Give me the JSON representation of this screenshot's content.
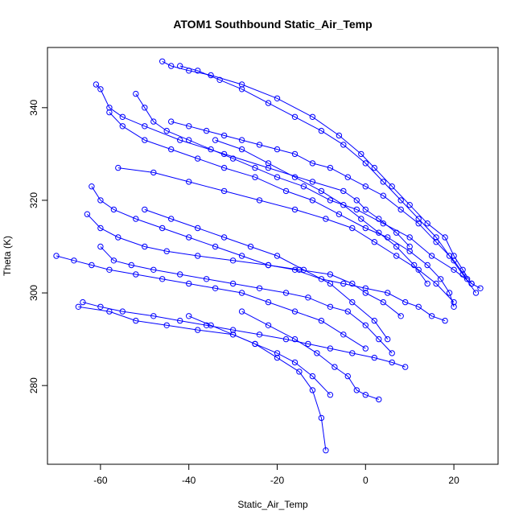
{
  "chart_data": {
    "type": "scatter",
    "title": "ATOM1 Southbound Static_Air_Temp",
    "xlabel": "Static_Air_Temp",
    "ylabel": "Theta (K)",
    "xlim": [
      -72,
      30
    ],
    "ylim": [
      263,
      353
    ],
    "x_ticks": [
      -60,
      -40,
      -20,
      0,
      20
    ],
    "y_ticks": [
      280,
      300,
      320,
      340
    ],
    "grid": false,
    "legend": "none",
    "color": "#0000ff",
    "marker": "open-circle",
    "connected": true,
    "series": [
      {
        "x": [
          -61,
          -60,
          -58,
          -55,
          -50,
          -42,
          -32,
          -22,
          -12,
          -5,
          -2,
          0,
          3,
          7,
          10
        ],
        "y": [
          345,
          344,
          340,
          338,
          336,
          333,
          330,
          327,
          324,
          322,
          320,
          318,
          316,
          313,
          310
        ]
      },
      {
        "x": [
          -46,
          -44,
          -40,
          -35,
          -28,
          -20,
          -12,
          -6,
          -1,
          2,
          6,
          10,
          14,
          18,
          20,
          22,
          24,
          26
        ],
        "y": [
          350,
          349,
          348,
          347,
          345,
          342,
          338,
          334,
          330,
          327,
          323,
          319,
          315,
          312,
          308,
          305,
          302,
          301
        ]
      },
      {
        "x": [
          -42,
          -38,
          -33,
          -28,
          -22,
          -16,
          -10,
          -5,
          0,
          4,
          8,
          12,
          16,
          19,
          22,
          25
        ],
        "y": [
          349,
          348,
          346,
          344,
          341,
          338,
          335,
          332,
          328,
          324,
          320,
          316,
          312,
          308,
          304,
          300
        ]
      },
      {
        "x": [
          -58,
          -55,
          -50,
          -44,
          -38,
          -32,
          -25,
          -18,
          -12,
          -6,
          0,
          5,
          10,
          14,
          17,
          19,
          20
        ],
        "y": [
          339,
          336,
          333,
          331,
          329,
          327,
          325,
          322,
          320,
          317,
          314,
          312,
          309,
          306,
          303,
          300,
          297
        ]
      },
      {
        "x": [
          -62,
          -60,
          -57,
          -52,
          -46,
          -40,
          -34,
          -28,
          -22,
          -16,
          -10,
          -5,
          0,
          5,
          9,
          12,
          15,
          18
        ],
        "y": [
          323,
          320,
          318,
          316,
          314,
          312,
          310,
          308,
          306,
          305,
          303,
          302,
          301,
          300,
          298,
          297,
          295,
          294
        ]
      },
      {
        "x": [
          -63,
          -60,
          -56,
          -50,
          -45,
          -38,
          -30,
          -22,
          -15,
          -8,
          -3,
          0,
          4,
          8
        ],
        "y": [
          317,
          314,
          312,
          310,
          309,
          308,
          307,
          306,
          305,
          304,
          302,
          300,
          298,
          295
        ]
      },
      {
        "x": [
          -60,
          -57,
          -53,
          -48,
          -42,
          -36,
          -30,
          -24,
          -18,
          -13,
          -8,
          -4,
          0,
          3,
          6
        ],
        "y": [
          310,
          307,
          306,
          305,
          304,
          303,
          302,
          301,
          300,
          299,
          297,
          296,
          293,
          290,
          287
        ]
      },
      {
        "x": [
          -70,
          -66,
          -62,
          -58,
          -52,
          -46,
          -40,
          -34,
          -28,
          -22,
          -16,
          -10,
          -5,
          0
        ],
        "y": [
          308,
          307,
          306,
          305,
          304,
          303,
          302,
          301,
          300,
          298,
          296,
          294,
          291,
          288
        ]
      },
      {
        "x": [
          -64,
          -60,
          -55,
          -48,
          -42,
          -36,
          -30,
          -24,
          -18,
          -13,
          -8,
          -3,
          2,
          6,
          9
        ],
        "y": [
          298,
          297,
          296,
          295,
          294,
          293,
          292,
          291,
          290,
          289,
          288,
          287,
          286,
          285,
          284
        ]
      },
      {
        "x": [
          -65,
          -58,
          -52,
          -45,
          -38,
          -30,
          -25,
          -20,
          -16,
          -12,
          -8
        ],
        "y": [
          297,
          296,
          294,
          293,
          292,
          291,
          289,
          287,
          285,
          282,
          278
        ]
      },
      {
        "x": [
          -40,
          -35,
          -30,
          -25,
          -20,
          -15,
          -12,
          -10,
          -9
        ],
        "y": [
          295,
          293,
          291,
          289,
          286,
          283,
          279,
          273,
          266
        ]
      },
      {
        "x": [
          -28,
          -22,
          -16,
          -11,
          -7,
          -4,
          -2,
          0,
          3
        ],
        "y": [
          296,
          293,
          290,
          287,
          284,
          282,
          279,
          278,
          277
        ]
      },
      {
        "x": [
          -50,
          -44,
          -38,
          -32,
          -26,
          -20,
          -14,
          -8,
          -3,
          2,
          5
        ],
        "y": [
          318,
          316,
          314,
          312,
          310,
          308,
          305,
          302,
          298,
          294,
          290
        ]
      },
      {
        "x": [
          -34,
          -28,
          -22,
          -16,
          -10,
          -5,
          -1,
          3,
          7,
          11,
          14
        ],
        "y": [
          333,
          331,
          328,
          325,
          322,
          319,
          316,
          313,
          310,
          306,
          302
        ]
      },
      {
        "x": [
          -56,
          -48,
          -40,
          -32,
          -24,
          -16,
          -9,
          -3,
          2,
          7,
          12,
          16,
          20
        ],
        "y": [
          327,
          326,
          324,
          322,
          320,
          318,
          316,
          314,
          311,
          308,
          305,
          302,
          298
        ]
      },
      {
        "x": [
          -52,
          -50,
          -48,
          -45,
          -40,
          -35,
          -30,
          -25,
          -20,
          -14,
          -8,
          -2,
          4,
          10,
          15,
          20,
          24
        ],
        "y": [
          343,
          340,
          337,
          335,
          333,
          331,
          329,
          327,
          325,
          323,
          320,
          318,
          315,
          312,
          308,
          305,
          302
        ]
      },
      {
        "x": [
          -44,
          -40,
          -36,
          -32,
          -28,
          -24,
          -20,
          -16,
          -12,
          -8,
          -4,
          0,
          4,
          8,
          12,
          16,
          20,
          23
        ],
        "y": [
          337,
          336,
          335,
          334,
          333,
          332,
          331,
          330,
          328,
          327,
          325,
          323,
          321,
          318,
          315,
          311,
          307,
          303
        ]
      }
    ]
  }
}
